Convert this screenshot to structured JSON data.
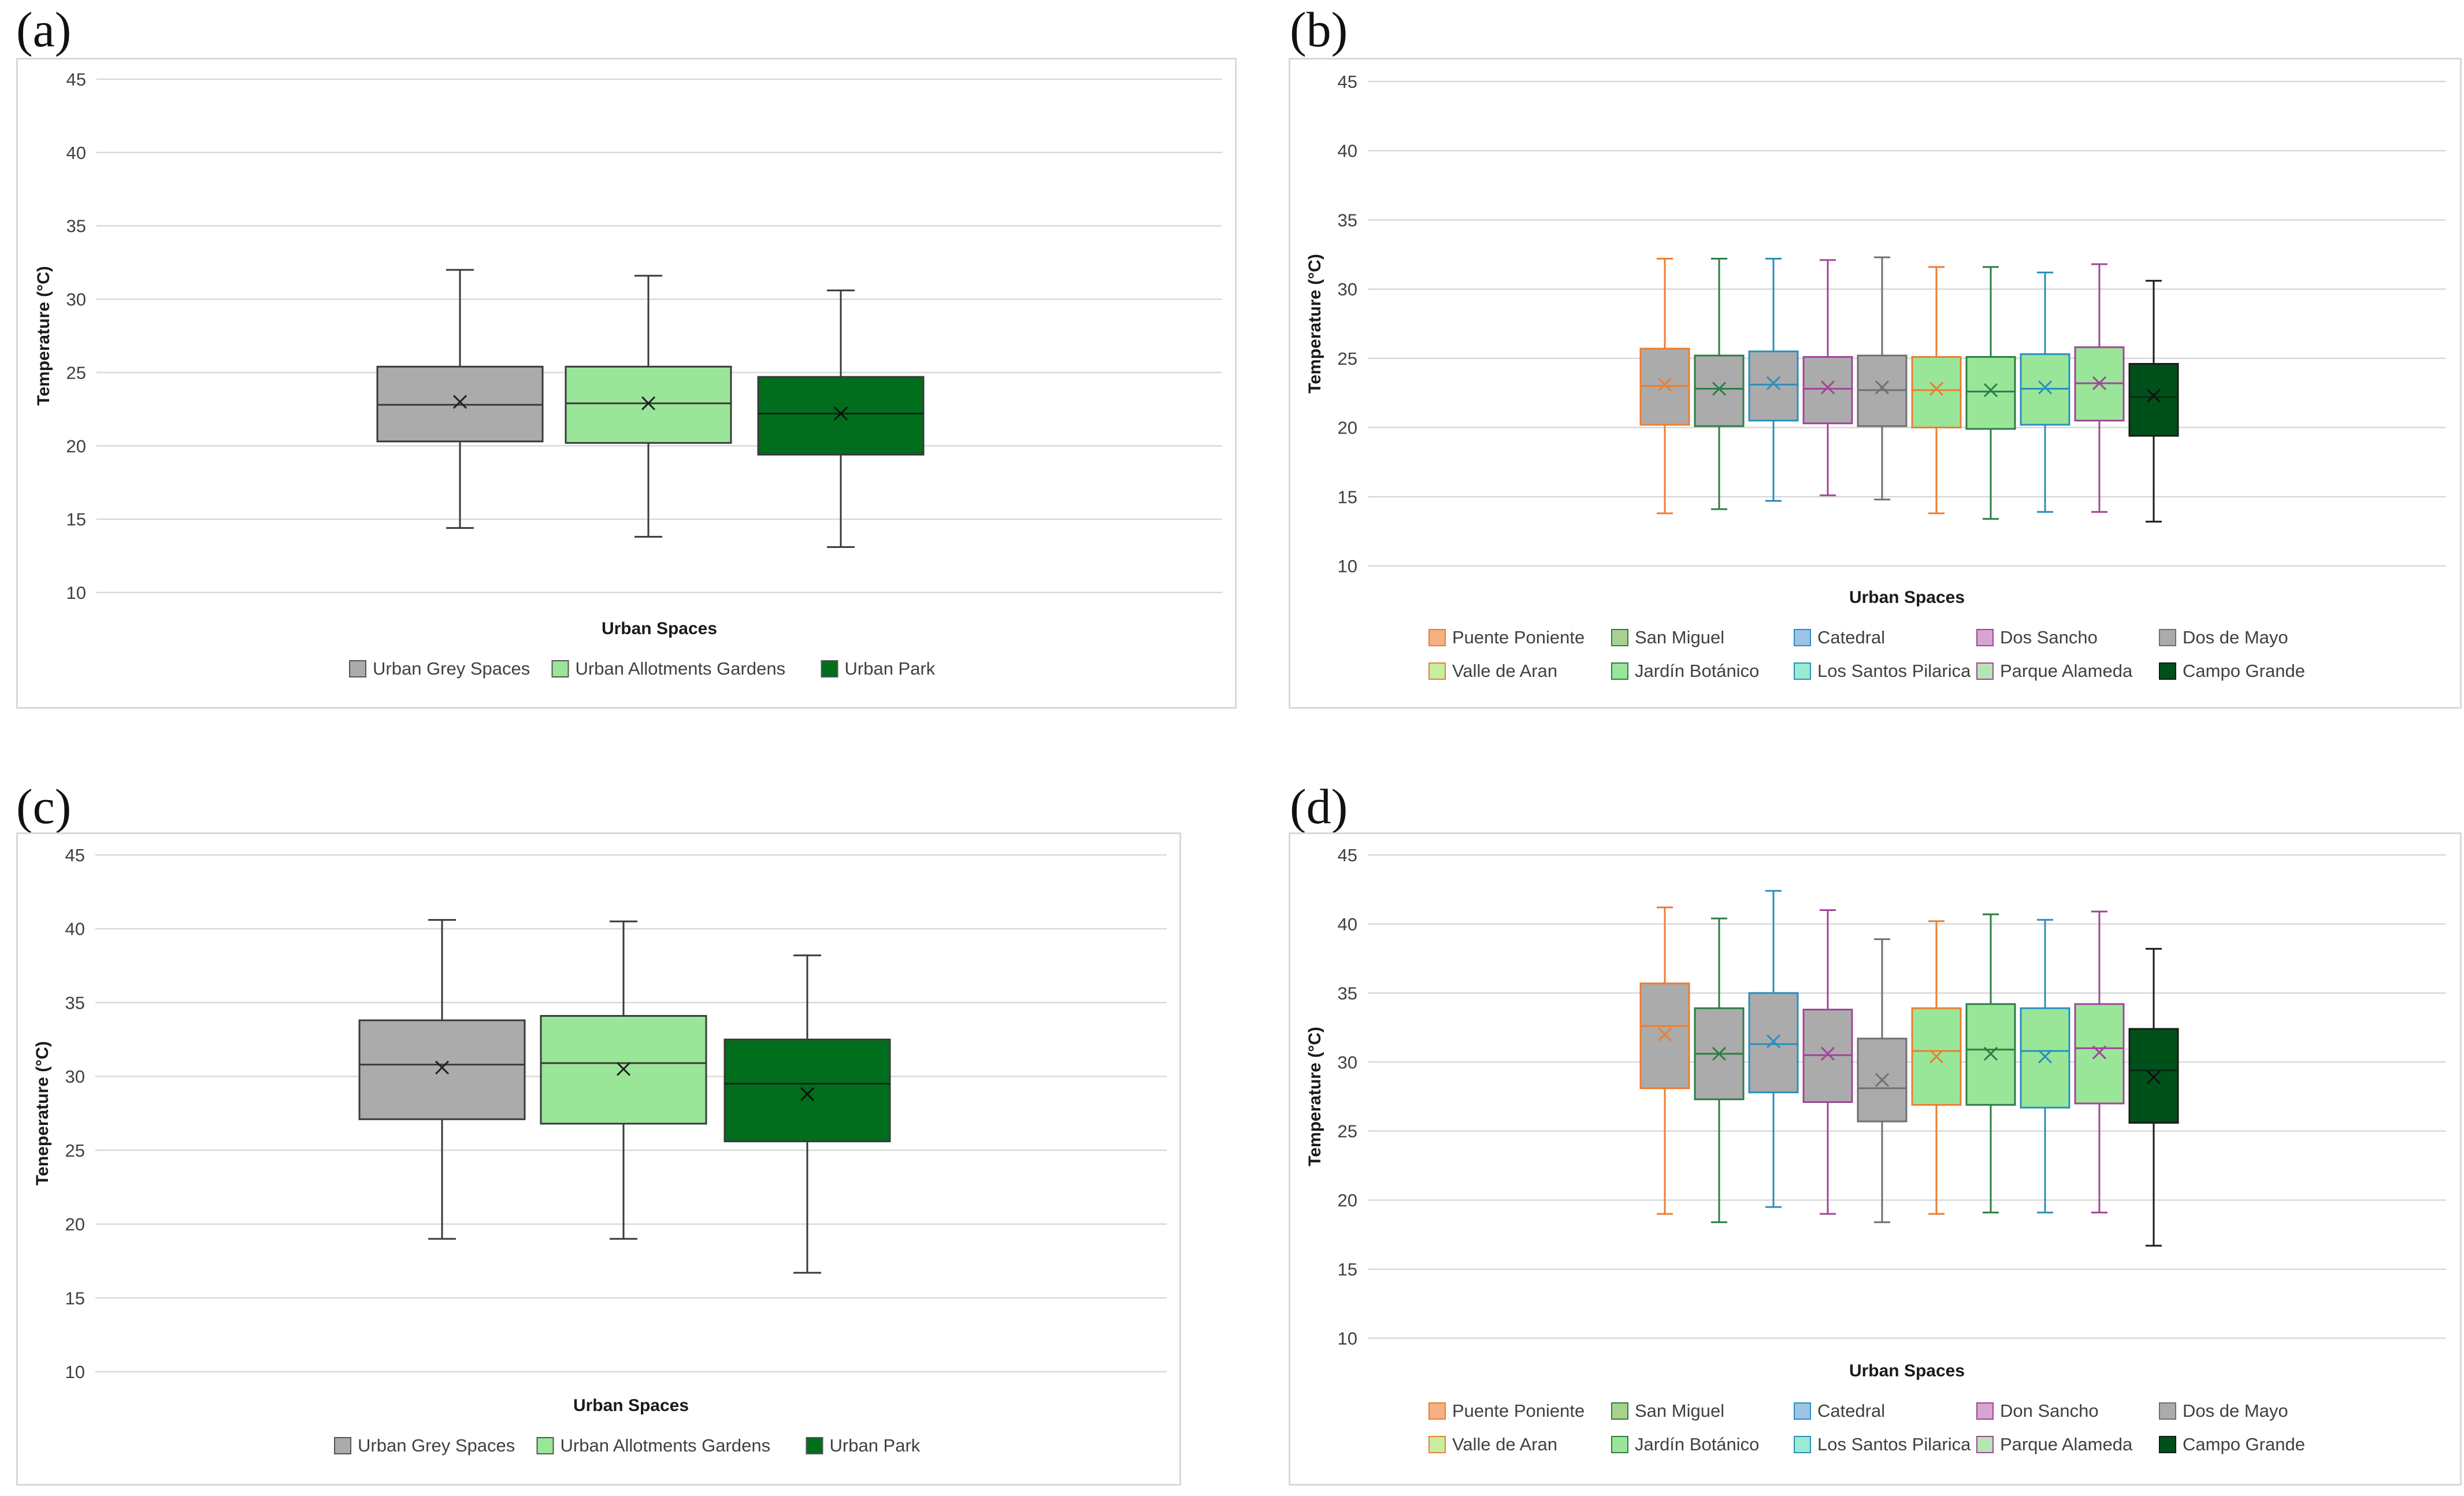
{
  "chart_data": [
    {
      "panel": "(a)",
      "type": "box",
      "ylabel": "Temperature (°C)",
      "xlabel": "Urban Spaces",
      "ylim": [
        10,
        45
      ],
      "yticks": [
        10,
        15,
        20,
        25,
        30,
        35,
        40,
        45
      ],
      "legend_position": "bottom",
      "legend_columns": 3,
      "series": [
        {
          "name": "Urban Grey Spaces",
          "fill": "#ababab",
          "stroke": "#3a3a3a",
          "min": 14.4,
          "q1": 20.3,
          "median": 22.8,
          "q3": 25.4,
          "max": 32.0,
          "mean": 23.0
        },
        {
          "name": "Urban Allotments Gardens",
          "fill": "#99e699",
          "stroke": "#3a3a3a",
          "min": 13.8,
          "q1": 20.2,
          "median": 22.9,
          "q3": 25.4,
          "max": 31.6,
          "mean": 22.9
        },
        {
          "name": "Urban Park",
          "fill": "#006e1c",
          "stroke": "#3a3a3a",
          "min": 13.1,
          "q1": 19.4,
          "median": 22.2,
          "q3": 24.7,
          "max": 30.6,
          "mean": 22.2
        }
      ]
    },
    {
      "panel": "(b)",
      "type": "box",
      "ylabel": "Temperature (°C)",
      "xlabel": "Urban Spaces",
      "ylim": [
        10,
        45
      ],
      "yticks": [
        10,
        15,
        20,
        25,
        30,
        35,
        40,
        45
      ],
      "legend_position": "bottom",
      "legend_columns": 5,
      "series": [
        {
          "name": "Puente Poniente",
          "fill": "#ababab",
          "stroke": "#ed7d31",
          "min": 13.8,
          "q1": 20.2,
          "median": 23.0,
          "q3": 25.7,
          "max": 32.2,
          "mean": 23.1
        },
        {
          "name": "San Miguel",
          "fill": "#ababab",
          "stroke": "#2e7d46",
          "min": 14.1,
          "q1": 20.1,
          "median": 22.8,
          "q3": 25.2,
          "max": 32.2,
          "mean": 22.8
        },
        {
          "name": "Catedral",
          "fill": "#ababab",
          "stroke": "#2a8fbd",
          "min": 14.7,
          "q1": 20.5,
          "median": 23.1,
          "q3": 25.5,
          "max": 32.2,
          "mean": 23.2
        },
        {
          "name": "Dos Sancho",
          "fill": "#ababab",
          "stroke": "#a3449a",
          "min": 15.1,
          "q1": 20.3,
          "median": 22.8,
          "q3": 25.1,
          "max": 32.1,
          "mean": 22.9
        },
        {
          "name": "Dos de Mayo",
          "fill": "#ababab",
          "stroke": "#707070",
          "min": 14.8,
          "q1": 20.1,
          "median": 22.7,
          "q3": 25.2,
          "max": 32.3,
          "mean": 22.9
        },
        {
          "name": "Valle de Aran",
          "fill": "#99e699",
          "stroke": "#ed7d31",
          "min": 13.8,
          "q1": 20.0,
          "median": 22.7,
          "q3": 25.1,
          "max": 31.6,
          "mean": 22.8
        },
        {
          "name": "Jardín Botánico",
          "fill": "#99e699",
          "stroke": "#2e7d46",
          "min": 13.4,
          "q1": 19.9,
          "median": 22.6,
          "q3": 25.1,
          "max": 31.6,
          "mean": 22.7
        },
        {
          "name": "Los Santos Pilarica",
          "fill": "#99e699",
          "stroke": "#2a8fbd",
          "min": 13.9,
          "q1": 20.2,
          "median": 22.8,
          "q3": 25.3,
          "max": 31.2,
          "mean": 22.9
        },
        {
          "name": "Parque Alameda",
          "fill": "#99e699",
          "stroke": "#a3449a",
          "min": 13.9,
          "q1": 20.5,
          "median": 23.2,
          "q3": 25.8,
          "max": 31.8,
          "mean": 23.2
        },
        {
          "name": "Campo Grande",
          "fill": "#00501a",
          "stroke": "#1a1a1a",
          "min": 13.2,
          "q1": 19.4,
          "median": 22.2,
          "q3": 24.6,
          "max": 30.6,
          "mean": 22.3
        }
      ]
    },
    {
      "panel": "(c)",
      "type": "box",
      "ylabel": "Teneperature (°C)",
      "xlabel": "Urban Spaces",
      "ylim": [
        10,
        45
      ],
      "yticks": [
        10,
        15,
        20,
        25,
        30,
        35,
        40,
        45
      ],
      "legend_position": "bottom",
      "legend_columns": 3,
      "series": [
        {
          "name": "Urban Grey Spaces",
          "fill": "#ababab",
          "stroke": "#3a3a3a",
          "min": 19.0,
          "q1": 27.1,
          "median": 30.8,
          "q3": 33.8,
          "max": 40.6,
          "mean": 30.6
        },
        {
          "name": "Urban Allotments Gardens",
          "fill": "#99e699",
          "stroke": "#3a3a3a",
          "min": 19.0,
          "q1": 26.8,
          "median": 30.9,
          "q3": 34.1,
          "max": 40.5,
          "mean": 30.5
        },
        {
          "name": "Urban Park",
          "fill": "#006e1c",
          "stroke": "#3a3a3a",
          "min": 16.7,
          "q1": 25.6,
          "median": 29.5,
          "q3": 32.5,
          "max": 38.2,
          "mean": 28.8
        }
      ]
    },
    {
      "panel": "(d)",
      "type": "box",
      "ylabel": "Temperature (°C)",
      "xlabel": "Urban Spaces",
      "ylim": [
        10,
        45
      ],
      "yticks": [
        10,
        15,
        20,
        25,
        30,
        35,
        40,
        45
      ],
      "legend_position": "bottom",
      "legend_columns": 5,
      "series": [
        {
          "name": "Puente Poniente",
          "fill": "#ababab",
          "stroke": "#ed7d31",
          "min": 19.0,
          "q1": 28.1,
          "median": 32.6,
          "q3": 35.7,
          "max": 41.2,
          "mean": 32.0
        },
        {
          "name": "San Miguel",
          "fill": "#ababab",
          "stroke": "#2e7d46",
          "min": 18.4,
          "q1": 27.3,
          "median": 30.6,
          "q3": 33.9,
          "max": 40.4,
          "mean": 30.6
        },
        {
          "name": "Catedral",
          "fill": "#ababab",
          "stroke": "#2a8fbd",
          "min": 19.5,
          "q1": 27.8,
          "median": 31.3,
          "q3": 35.0,
          "max": 42.4,
          "mean": 31.5
        },
        {
          "name": "Don Sancho",
          "fill": "#ababab",
          "stroke": "#a3449a",
          "min": 19.0,
          "q1": 27.1,
          "median": 30.5,
          "q3": 33.8,
          "max": 41.0,
          "mean": 30.6
        },
        {
          "name": "Dos de Mayo",
          "fill": "#ababab",
          "stroke": "#707070",
          "min": 18.4,
          "q1": 25.7,
          "median": 28.1,
          "q3": 31.7,
          "max": 38.9,
          "mean": 28.7
        },
        {
          "name": "Valle de Aran",
          "fill": "#99e699",
          "stroke": "#ed7d31",
          "min": 19.0,
          "q1": 26.9,
          "median": 30.8,
          "q3": 33.9,
          "max": 40.2,
          "mean": 30.4
        },
        {
          "name": "Jardín Botánico",
          "fill": "#99e699",
          "stroke": "#2e7d46",
          "min": 19.1,
          "q1": 26.9,
          "median": 30.9,
          "q3": 34.2,
          "max": 40.7,
          "mean": 30.6
        },
        {
          "name": "Los Santos Pilarica",
          "fill": "#99e699",
          "stroke": "#2a8fbd",
          "min": 19.1,
          "q1": 26.7,
          "median": 30.8,
          "q3": 33.9,
          "max": 40.3,
          "mean": 30.4
        },
        {
          "name": "Parque Alameda",
          "fill": "#99e699",
          "stroke": "#a3449a",
          "min": 19.1,
          "q1": 27.0,
          "median": 31.0,
          "q3": 34.2,
          "max": 40.9,
          "mean": 30.7
        },
        {
          "name": "Campo Grande",
          "fill": "#00501a",
          "stroke": "#1a1a1a",
          "min": 16.7,
          "q1": 25.6,
          "median": 29.4,
          "q3": 32.4,
          "max": 38.2,
          "mean": 28.9
        }
      ]
    }
  ],
  "legend_swatches": {
    "(b)": [
      "#f4b183",
      "#a9d18e",
      "#9dc3e6",
      "#d5a6cf",
      "#ababab",
      "#c6efa0",
      "#99e699",
      "#99ecd0",
      "#b3e6b3",
      "#00501a"
    ],
    "(d)": [
      "#f4b183",
      "#a9d18e",
      "#9dc3e6",
      "#d5a6cf",
      "#ababab",
      "#c6efa0",
      "#99e699",
      "#99ecd0",
      "#b3e6b3",
      "#00501a"
    ]
  }
}
